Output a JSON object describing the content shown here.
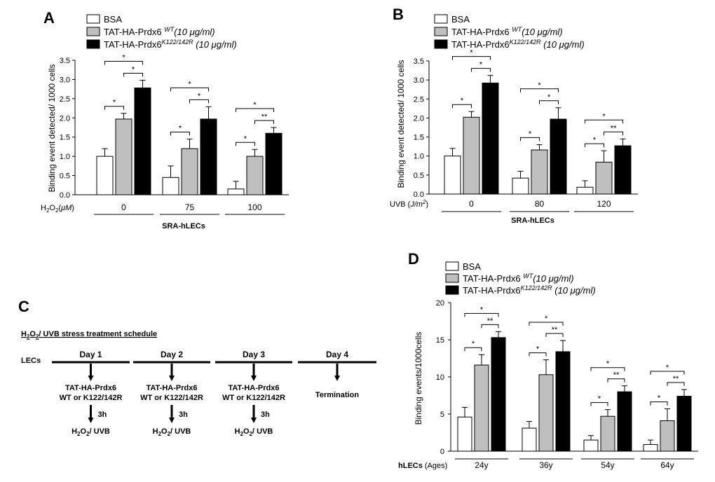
{
  "legend_colors": {
    "BSA": "#ffffff",
    "WT": "#bfbfbf",
    "K122": "#000000"
  },
  "chart_data": [
    {
      "panel": "A",
      "type": "bar",
      "legend": [
        "BSA",
        "TAT-HA-Prdx6 ",
        "WT",
        "(10 μg/ml)",
        "TAT-HA-Prdx6",
        "K122/142R",
        " (10 μg/ml)"
      ],
      "ylabel": "Binding event detected/ 1000 cells",
      "ylim": [
        0,
        3.5
      ],
      "yticks": [
        "0.0",
        "0.5",
        "1.0",
        "1.5",
        "2.0",
        "2.5",
        "3.0",
        "3.5"
      ],
      "xcat_label": [
        "H",
        "2",
        "O",
        "2",
        "(",
        "μM",
        ")"
      ],
      "categories": [
        "0",
        "75",
        "100"
      ],
      "footer": "SRA-hLECs",
      "series": [
        {
          "name": "BSA",
          "values": [
            1.0,
            0.45,
            0.15
          ],
          "errors": [
            0.2,
            0.3,
            0.2
          ]
        },
        {
          "name": "TAT-HA-Prdx6 WT",
          "values": [
            1.97,
            1.2,
            1.0
          ],
          "errors": [
            0.15,
            0.25,
            0.18
          ]
        },
        {
          "name": "TAT-HA-Prdx6 K122/142R",
          "values": [
            2.78,
            1.97,
            1.6
          ],
          "errors": [
            0.2,
            0.32,
            0.15
          ]
        }
      ],
      "significance": [
        {
          "group": 0,
          "pair": [
            0,
            2
          ],
          "mark": "*"
        },
        {
          "group": 0,
          "pair": [
            0,
            1
          ],
          "mark": "*"
        },
        {
          "group": 0,
          "pair": [
            1,
            2
          ],
          "mark": "*"
        },
        {
          "group": 1,
          "pair": [
            0,
            2
          ],
          "mark": "*"
        },
        {
          "group": 1,
          "pair": [
            0,
            1
          ],
          "mark": "*"
        },
        {
          "group": 1,
          "pair": [
            1,
            2
          ],
          "mark": "*"
        },
        {
          "group": 2,
          "pair": [
            0,
            2
          ],
          "mark": "*"
        },
        {
          "group": 2,
          "pair": [
            0,
            1
          ],
          "mark": "*"
        },
        {
          "group": 2,
          "pair": [
            1,
            2
          ],
          "mark": "**"
        }
      ]
    },
    {
      "panel": "B",
      "type": "bar",
      "legend": [
        "BSA",
        "TAT-HA-Prdx6 ",
        "WT",
        "(10 μg/ml)",
        "TAT-HA-Prdx6",
        "K122/142R",
        " (10 μg/ml)"
      ],
      "ylabel": "Binding event detected/ 1000 cells",
      "ylim": [
        0,
        3.5
      ],
      "yticks": [
        "0.0",
        "0.5",
        "1.0",
        "1.5",
        "2.0",
        "2.5",
        "3.0",
        "3.5"
      ],
      "xcat_label": [
        "UVB  (",
        "J/m",
        "2",
        ")"
      ],
      "categories": [
        "0",
        "80",
        "120"
      ],
      "footer": "SRA-hLECs",
      "series": [
        {
          "name": "BSA",
          "values": [
            1.0,
            0.42,
            0.18
          ],
          "errors": [
            0.2,
            0.18,
            0.17
          ]
        },
        {
          "name": "TAT-HA-Prdx6 WT",
          "values": [
            2.02,
            1.16,
            0.84
          ],
          "errors": [
            0.15,
            0.14,
            0.3
          ]
        },
        {
          "name": "TAT-HA-Prdx6 K122/142R",
          "values": [
            2.92,
            1.97,
            1.27
          ],
          "errors": [
            0.2,
            0.3,
            0.18
          ]
        }
      ],
      "significance": [
        {
          "group": 0,
          "pair": [
            0,
            2
          ],
          "mark": "*"
        },
        {
          "group": 0,
          "pair": [
            0,
            1
          ],
          "mark": "*"
        },
        {
          "group": 0,
          "pair": [
            1,
            2
          ],
          "mark": "*"
        },
        {
          "group": 1,
          "pair": [
            0,
            2
          ],
          "mark": "*"
        },
        {
          "group": 1,
          "pair": [
            0,
            1
          ],
          "mark": "*"
        },
        {
          "group": 1,
          "pair": [
            1,
            2
          ],
          "mark": "*"
        },
        {
          "group": 2,
          "pair": [
            0,
            2
          ],
          "mark": "*"
        },
        {
          "group": 2,
          "pair": [
            0,
            1
          ],
          "mark": "*"
        },
        {
          "group": 2,
          "pair": [
            1,
            2
          ],
          "mark": "**"
        }
      ]
    },
    {
      "panel": "D",
      "type": "bar",
      "legend": [
        "BSA",
        "TAT-HA-Prdx6 ",
        "WT",
        "(10 μg/ml)",
        "TAT-HA-Prdx6",
        "K122/142R",
        " (10 μg/ml)"
      ],
      "ylabel": "Binding events/1000cells",
      "ylim": [
        0,
        20
      ],
      "yticks": [
        "0",
        "5",
        "10",
        "15",
        "20"
      ],
      "xcat_label": [
        "hLECs",
        " (Ages)"
      ],
      "categories": [
        "24y",
        "36y",
        "54y",
        "64y"
      ],
      "footer": "",
      "series": [
        {
          "name": "BSA",
          "values": [
            4.6,
            3.1,
            1.5,
            0.9
          ],
          "errors": [
            1.3,
            0.9,
            0.6,
            0.6
          ]
        },
        {
          "name": "TAT-HA-Prdx6 WT",
          "values": [
            11.6,
            10.3,
            4.7,
            4.1
          ],
          "errors": [
            1.4,
            2.0,
            0.9,
            1.6
          ]
        },
        {
          "name": "TAT-HA-Prdx6 K122/142R",
          "values": [
            15.3,
            13.4,
            8.0,
            7.4
          ],
          "errors": [
            0.8,
            1.5,
            0.8,
            0.9
          ]
        }
      ],
      "significance": [
        {
          "group": 0,
          "pair": [
            0,
            2
          ],
          "mark": "*"
        },
        {
          "group": 0,
          "pair": [
            0,
            1
          ],
          "mark": "*"
        },
        {
          "group": 0,
          "pair": [
            1,
            2
          ],
          "mark": "**"
        },
        {
          "group": 1,
          "pair": [
            0,
            2
          ],
          "mark": "*"
        },
        {
          "group": 1,
          "pair": [
            0,
            1
          ],
          "mark": "*"
        },
        {
          "group": 1,
          "pair": [
            1,
            2
          ],
          "mark": "**"
        },
        {
          "group": 2,
          "pair": [
            0,
            2
          ],
          "mark": "*"
        },
        {
          "group": 2,
          "pair": [
            0,
            1
          ],
          "mark": "*"
        },
        {
          "group": 2,
          "pair": [
            1,
            2
          ],
          "mark": "**"
        },
        {
          "group": 3,
          "pair": [
            0,
            2
          ],
          "mark": "*"
        },
        {
          "group": 3,
          "pair": [
            0,
            1
          ],
          "mark": "*"
        },
        {
          "group": 3,
          "pair": [
            1,
            2
          ],
          "mark": "**"
        }
      ]
    }
  ],
  "schedule": {
    "panel": "C",
    "title": [
      "H",
      "2",
      "O",
      "2",
      "/ UVB  stress  treatment schedule"
    ],
    "row_label": "LECs",
    "days": [
      "Day 1",
      "Day 2",
      "Day 3",
      "Day 4"
    ],
    "treatment_line1": "TAT-HA-Prdx6",
    "treatment_line2": "WT or K122/142R",
    "termination": "Termination",
    "interval": "3h",
    "stress": [
      "H",
      "2",
      "O",
      "2",
      "/ UVB"
    ]
  }
}
